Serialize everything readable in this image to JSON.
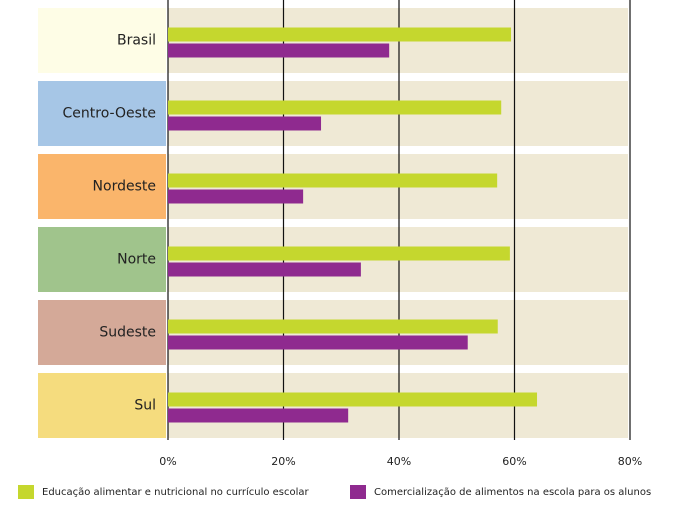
{
  "chart_data": {
    "type": "hbar",
    "categories": [
      "Brasil",
      "Centro-Oeste",
      "Nordeste",
      "Norte",
      "Sudeste",
      "Sul"
    ],
    "category_colors": [
      "#fefde6",
      "#a6c6e6",
      "#fab56b",
      "#a0c48c",
      "#d4a998",
      "#f5dc7e"
    ],
    "series": [
      {
        "name": "Educação alimentar e nutricional no currículo escolar",
        "color": "#c5d72e",
        "values": [
          59.4,
          57.7,
          57.0,
          59.2,
          57.1,
          63.9
        ]
      },
      {
        "name": "Comercialização de alimentos na escola para os alunos",
        "color": "#8f2a8f",
        "values": [
          38.3,
          26.5,
          23.4,
          33.4,
          51.9,
          31.2
        ]
      }
    ],
    "xlim": [
      0,
      80
    ],
    "xticks": [
      {
        "value": 0,
        "label": "0%"
      },
      {
        "value": 20,
        "label": "20%"
      },
      {
        "value": 40,
        "label": "40%"
      },
      {
        "value": 60,
        "label": "60%"
      },
      {
        "value": 80,
        "label": "80%"
      }
    ],
    "grid": true,
    "legend": "bottom"
  }
}
